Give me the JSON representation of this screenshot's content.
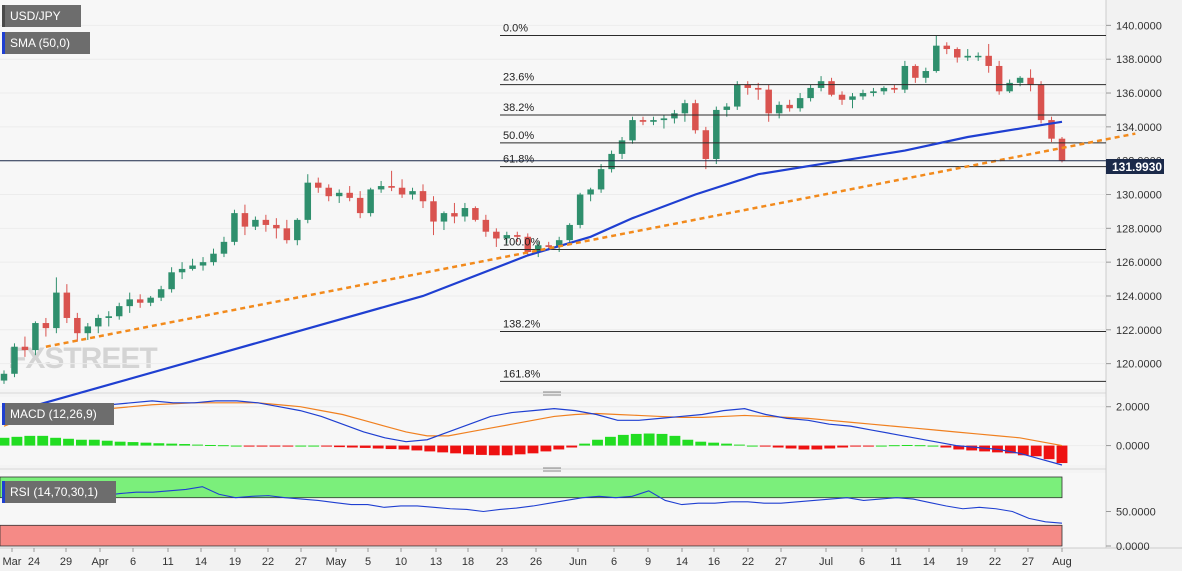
{
  "chart_data": {
    "type": "candlestick",
    "symbol_label": "USD/JPY",
    "indicator_label": "SMA (50,0)",
    "last_price_label": "131.9930",
    "price_axis": {
      "ylim": [
        118.5,
        141.5
      ],
      "ticks": [
        "140.0000",
        "138.0000",
        "136.0000",
        "134.0000",
        "132.0000",
        "130.0000",
        "128.0000",
        "126.0000",
        "124.0000",
        "122.0000",
        "120.0000"
      ]
    },
    "x_ticks": [
      "Mar",
      "24",
      "29",
      "Apr",
      "6",
      "11",
      "14",
      "19",
      "22",
      "27",
      "May",
      "5",
      "10",
      "13",
      "18",
      "23",
      "26",
      "Jun",
      "6",
      "9",
      "14",
      "16",
      "22",
      "27",
      "Jul",
      "6",
      "11",
      "14",
      "19",
      "22",
      "27",
      "Aug"
    ],
    "fibonacci": [
      {
        "label": "0.0%",
        "value": 139.4
      },
      {
        "label": "23.6%",
        "value": 136.5
      },
      {
        "label": "38.2%",
        "value": 134.7
      },
      {
        "label": "50.0%",
        "value": 133.05
      },
      {
        "label": "61.8%",
        "value": 131.65
      },
      {
        "label": "100.0%",
        "value": 126.75
      },
      {
        "label": "138.2%",
        "value": 121.9
      },
      {
        "label": "161.8%",
        "value": 118.95
      }
    ],
    "candles": [
      [
        119.0,
        119.6,
        118.8,
        119.4
      ],
      [
        119.4,
        121.2,
        119.2,
        121.0
      ],
      [
        121.0,
        121.6,
        120.4,
        120.8
      ],
      [
        120.8,
        122.5,
        120.5,
        122.4
      ],
      [
        122.4,
        122.7,
        121.6,
        122.1
      ],
      [
        122.1,
        125.1,
        121.8,
        124.2
      ],
      [
        124.2,
        124.7,
        122.4,
        122.7
      ],
      [
        122.7,
        123.0,
        121.3,
        121.8
      ],
      [
        121.8,
        122.4,
        121.4,
        122.2
      ],
      [
        122.2,
        122.9,
        121.8,
        122.7
      ],
      [
        122.7,
        123.1,
        122.2,
        122.8
      ],
      [
        122.8,
        123.6,
        122.6,
        123.4
      ],
      [
        123.4,
        124.2,
        123.0,
        123.8
      ],
      [
        123.8,
        124.1,
        123.3,
        123.6
      ],
      [
        123.6,
        124.0,
        123.4,
        123.9
      ],
      [
        123.9,
        124.6,
        123.7,
        124.4
      ],
      [
        124.4,
        125.7,
        124.2,
        125.4
      ],
      [
        125.4,
        126.0,
        125.0,
        125.6
      ],
      [
        125.6,
        126.2,
        125.5,
        125.8
      ],
      [
        125.8,
        126.3,
        125.5,
        126.0
      ],
      [
        126.0,
        126.8,
        125.8,
        126.5
      ],
      [
        126.5,
        127.5,
        126.3,
        127.2
      ],
      [
        127.2,
        129.1,
        127.0,
        128.9
      ],
      [
        128.9,
        129.4,
        127.6,
        128.1
      ],
      [
        128.1,
        128.7,
        127.9,
        128.5
      ],
      [
        128.5,
        128.8,
        127.8,
        128.2
      ],
      [
        128.2,
        128.6,
        127.4,
        128.0
      ],
      [
        128.0,
        128.5,
        127.1,
        127.3
      ],
      [
        127.3,
        128.6,
        127.0,
        128.5
      ],
      [
        128.5,
        131.2,
        128.3,
        130.7
      ],
      [
        130.7,
        131.0,
        130.1,
        130.4
      ],
      [
        130.4,
        130.6,
        129.6,
        129.9
      ],
      [
        129.9,
        130.3,
        129.5,
        130.1
      ],
      [
        130.1,
        130.5,
        129.6,
        129.8
      ],
      [
        129.8,
        130.2,
        128.6,
        128.9
      ],
      [
        128.9,
        130.4,
        128.7,
        130.3
      ],
      [
        130.3,
        130.8,
        130.1,
        130.5
      ],
      [
        130.5,
        131.4,
        130.2,
        130.4
      ],
      [
        130.4,
        130.9,
        129.8,
        130.0
      ],
      [
        130.0,
        130.4,
        129.7,
        130.2
      ],
      [
        130.2,
        130.6,
        129.2,
        129.6
      ],
      [
        129.6,
        129.9,
        127.6,
        128.4
      ],
      [
        128.4,
        129.0,
        127.9,
        128.9
      ],
      [
        128.9,
        129.5,
        128.3,
        128.7
      ],
      [
        128.7,
        129.5,
        128.4,
        129.2
      ],
      [
        129.2,
        129.3,
        128.4,
        128.5
      ],
      [
        128.5,
        128.8,
        127.5,
        127.8
      ],
      [
        127.8,
        128.0,
        126.9,
        127.4
      ],
      [
        127.4,
        127.8,
        127.1,
        127.6
      ],
      [
        127.6,
        127.8,
        127.2,
        127.5
      ],
      [
        127.5,
        127.7,
        126.4,
        126.6
      ],
      [
        126.6,
        127.2,
        126.3,
        127.0
      ],
      [
        127.0,
        127.2,
        126.7,
        126.9
      ],
      [
        126.9,
        127.5,
        126.6,
        127.3
      ],
      [
        127.3,
        128.3,
        127.1,
        128.2
      ],
      [
        128.2,
        130.1,
        128.0,
        130.0
      ],
      [
        130.0,
        130.4,
        129.6,
        130.3
      ],
      [
        130.3,
        131.8,
        130.1,
        131.5
      ],
      [
        131.5,
        132.6,
        131.3,
        132.4
      ],
      [
        132.4,
        133.4,
        132.1,
        133.2
      ],
      [
        133.2,
        134.6,
        133.0,
        134.4
      ],
      [
        134.4,
        134.6,
        134.1,
        134.3
      ],
      [
        134.3,
        134.6,
        134.1,
        134.4
      ],
      [
        134.4,
        134.7,
        133.9,
        134.5
      ],
      [
        134.5,
        135.0,
        134.2,
        134.8
      ],
      [
        134.8,
        135.6,
        134.3,
        135.4
      ],
      [
        135.4,
        135.6,
        133.6,
        133.8
      ],
      [
        133.8,
        134.0,
        131.5,
        132.1
      ],
      [
        132.1,
        135.2,
        131.8,
        135.0
      ],
      [
        135.0,
        135.4,
        134.6,
        135.2
      ],
      [
        135.2,
        136.7,
        135.0,
        136.5
      ],
      [
        136.5,
        136.7,
        135.9,
        136.3
      ],
      [
        136.3,
        136.6,
        135.6,
        136.2
      ],
      [
        136.2,
        136.5,
        134.3,
        134.8
      ],
      [
        134.8,
        135.5,
        134.5,
        135.3
      ],
      [
        135.3,
        135.6,
        134.9,
        135.1
      ],
      [
        135.1,
        136.0,
        134.9,
        135.7
      ],
      [
        135.7,
        136.5,
        135.5,
        136.3
      ],
      [
        136.3,
        137.0,
        136.1,
        136.7
      ],
      [
        136.7,
        136.9,
        135.8,
        135.9
      ],
      [
        135.9,
        136.1,
        135.3,
        135.6
      ],
      [
        135.6,
        136.0,
        135.1,
        135.8
      ],
      [
        135.8,
        136.2,
        135.6,
        136.0
      ],
      [
        136.0,
        136.3,
        135.8,
        136.1
      ],
      [
        136.1,
        136.4,
        135.9,
        136.3
      ],
      [
        136.3,
        136.5,
        136.0,
        136.2
      ],
      [
        136.2,
        137.9,
        136.0,
        137.6
      ],
      [
        137.6,
        137.7,
        136.6,
        136.9
      ],
      [
        136.9,
        137.5,
        136.6,
        137.3
      ],
      [
        137.3,
        139.4,
        137.2,
        138.8
      ],
      [
        138.8,
        139.0,
        138.3,
        138.6
      ],
      [
        138.6,
        138.7,
        137.8,
        138.1
      ],
      [
        138.1,
        138.6,
        137.9,
        138.2
      ],
      [
        138.2,
        138.4,
        137.9,
        138.2
      ],
      [
        138.2,
        138.9,
        137.2,
        137.6
      ],
      [
        137.6,
        137.9,
        135.9,
        136.1
      ],
      [
        136.1,
        136.8,
        136.0,
        136.6
      ],
      [
        136.6,
        137.0,
        136.4,
        136.9
      ],
      [
        136.9,
        137.4,
        136.1,
        136.5
      ],
      [
        136.5,
        136.7,
        134.2,
        134.4
      ],
      [
        134.4,
        134.6,
        133.1,
        133.3
      ],
      [
        133.3,
        133.4,
        131.9,
        132.0
      ]
    ],
    "sma50": [
      [
        0,
        117.0
      ],
      [
        20,
        120.5
      ],
      [
        40,
        124.0
      ],
      [
        50,
        126.4
      ],
      [
        56,
        127.5
      ],
      [
        60,
        128.6
      ],
      [
        66,
        130.0
      ],
      [
        72,
        131.2
      ],
      [
        80,
        132.0
      ],
      [
        86,
        132.6
      ],
      [
        92,
        133.4
      ],
      [
        98,
        134.0
      ],
      [
        100,
        134.2
      ],
      [
        101,
        134.3
      ]
    ],
    "trendline": {
      "start": [
        4,
        121.0
      ],
      "end": [
        108,
        133.6
      ]
    },
    "macd": {
      "label": "MACD (12,26,9)",
      "ylim": [
        -1.0,
        2.5
      ],
      "ticks": [
        "2.0000",
        "0.0000"
      ],
      "macd": [
        1.2,
        1.6,
        1.8,
        1.9,
        2.0,
        2.1,
        2.2,
        2.3,
        2.2,
        2.2,
        2.3,
        2.3,
        2.2,
        2.0,
        1.8,
        1.5,
        1.1,
        0.7,
        0.4,
        0.2,
        0.3,
        0.7,
        1.1,
        1.5,
        1.7,
        1.8,
        1.9,
        1.8,
        1.6,
        1.3,
        1.3,
        1.4,
        1.5,
        1.6,
        1.8,
        1.9,
        1.6,
        1.4,
        1.3,
        1.1,
        1.0,
        0.8,
        0.6,
        0.4,
        0.2,
        0.0,
        -0.1,
        -0.2,
        -0.4,
        -0.7,
        -1.0
      ],
      "signal": [
        1.0,
        1.4,
        1.6,
        1.7,
        1.8,
        1.9,
        2.0,
        2.1,
        2.15,
        2.2,
        2.2,
        2.2,
        2.2,
        2.1,
        2.0,
        1.8,
        1.6,
        1.3,
        1.0,
        0.7,
        0.5,
        0.5,
        0.7,
        0.9,
        1.1,
        1.3,
        1.5,
        1.6,
        1.65,
        1.6,
        1.55,
        1.5,
        1.45,
        1.45,
        1.5,
        1.55,
        1.5,
        1.45,
        1.4,
        1.3,
        1.2,
        1.1,
        1.0,
        0.9,
        0.8,
        0.7,
        0.6,
        0.5,
        0.4,
        0.2,
        0.0
      ],
      "histogram": [
        0.4,
        0.45,
        0.5,
        0.5,
        0.4,
        0.35,
        0.3,
        0.3,
        0.25,
        0.2,
        0.18,
        0.15,
        0.12,
        0.1,
        0.08,
        0.05,
        0.03,
        0.02,
        0.0,
        -0.03,
        -0.05,
        -0.05,
        -0.03,
        0.0,
        0.0,
        -0.05,
        -0.08,
        -0.1,
        -0.12,
        -0.15,
        -0.18,
        -0.2,
        -0.25,
        -0.3,
        -0.35,
        -0.4,
        -0.45,
        -0.48,
        -0.5,
        -0.5,
        -0.45,
        -0.4,
        -0.3,
        -0.2,
        -0.1,
        0.1,
        0.3,
        0.45,
        0.55,
        0.6,
        0.62,
        0.6,
        0.5,
        0.3,
        0.2,
        0.15,
        0.1,
        0.05,
        0.0,
        -0.05,
        -0.1,
        -0.15,
        -0.2,
        -0.2,
        -0.15,
        -0.1,
        -0.05,
        -0.03,
        0.0,
        0.02,
        0.03,
        0.02,
        0.0,
        -0.1,
        -0.2,
        -0.25,
        -0.3,
        -0.35,
        -0.4,
        -0.5,
        -0.55,
        -0.7,
        -0.9
      ]
    },
    "rsi": {
      "label": "RSI (14,70,30,1)",
      "ylim": [
        0,
        100
      ],
      "ticks": [
        "50.0000",
        "0.0000"
      ],
      "overbought": 70,
      "oversold": 30,
      "values": [
        65,
        70,
        75,
        74,
        76,
        72,
        73,
        76,
        78,
        78,
        80,
        82,
        86,
        75,
        70,
        72,
        73,
        70,
        68,
        66,
        63,
        60,
        60,
        56,
        58,
        58,
        56,
        54,
        53,
        50,
        53,
        55,
        58,
        62,
        66,
        70,
        72,
        70,
        72,
        80,
        66,
        60,
        62,
        62,
        64,
        64,
        62,
        62,
        64,
        66,
        68,
        70,
        66,
        68,
        70,
        68,
        63,
        58,
        54,
        56,
        54,
        50,
        40,
        35,
        33
      ]
    }
  }
}
